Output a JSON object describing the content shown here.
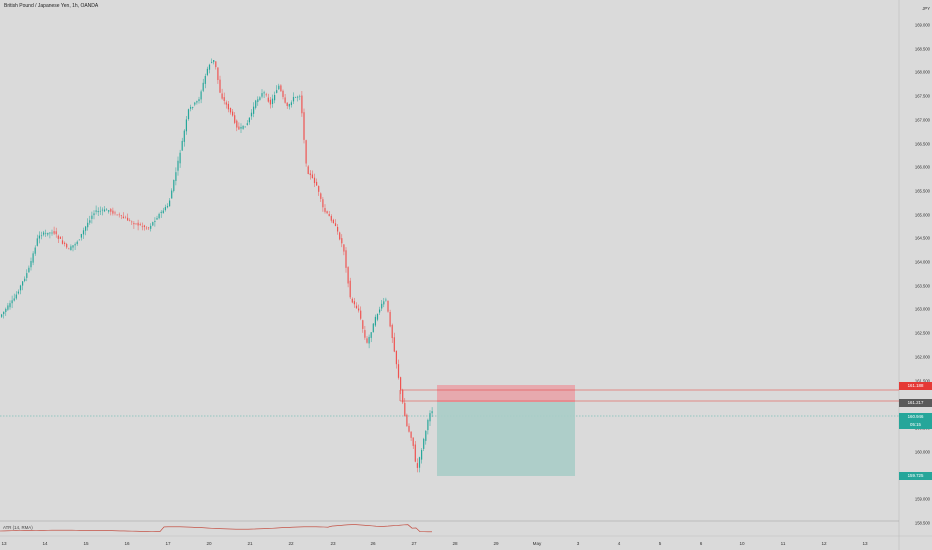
{
  "window": {
    "title": "British Pound / Japanese Yen, 1h, OANDA"
  },
  "price_axis": {
    "unit": "JPY",
    "ticks": [
      "169.000",
      "168.500",
      "168.000",
      "167.500",
      "167.000",
      "166.500",
      "166.000",
      "165.500",
      "165.000",
      "164.500",
      "164.000",
      "163.500",
      "163.000",
      "162.500",
      "162.000",
      "161.500",
      "161.000",
      "160.500",
      "160.000",
      "159.500",
      "159.000",
      "158.500"
    ]
  },
  "time_axis": {
    "ticks": [
      "13",
      "14",
      "15",
      "16",
      "17",
      "20",
      "21",
      "22",
      "23",
      "26",
      "27",
      "28",
      "29",
      "May",
      "3",
      "4",
      "5",
      "6",
      "10",
      "11",
      "12",
      "13"
    ]
  },
  "badges": {
    "stop": "161.188",
    "entry": "161.217",
    "current_price": "160.946",
    "current_timer": "05:15",
    "target": "159.725"
  },
  "indicator": {
    "label": "ATR (14, RMA)"
  },
  "colors": {
    "up": "#26a69a",
    "down": "#ef5350",
    "stop_zone": "#e8a3a8",
    "target_zone": "#a8ccc6",
    "atr_line": "#c0392b"
  }
}
